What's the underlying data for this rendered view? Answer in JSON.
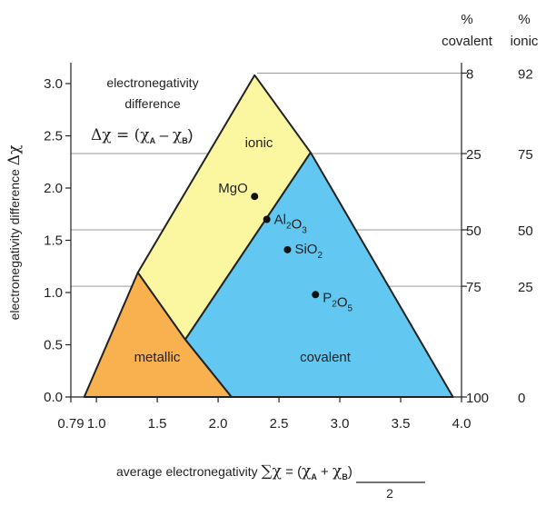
{
  "diagram": {
    "type": "van-arkel-ketelaar-triangle",
    "x_axis": {
      "label": "average electronegativity",
      "formula_sum": "∑χ",
      "formula_eq": " = (",
      "formula_chi_a": "χ",
      "sub_a": "A",
      "formula_plus": " + ",
      "formula_chi_b": "χ",
      "sub_b": "B",
      "formula_close": ")",
      "formula_den": "2",
      "range": [
        0.79,
        4.0
      ],
      "ticks": [
        "0.79",
        "1.0",
        "1.5",
        "2.0",
        "2.5",
        "3.0",
        "3.5",
        "4.0"
      ]
    },
    "y_axis": {
      "label": "electronegativity difference",
      "symbol": "Δχ",
      "range": [
        0.0,
        3.2
      ],
      "ticks": [
        "0.0",
        "0.5",
        "1.0",
        "1.5",
        "2.0",
        "2.5",
        "3.0"
      ]
    },
    "formula_box": {
      "line1": "electronegativity",
      "line2": "difference",
      "lhs": "Δχ = (",
      "chi_a": "χ",
      "sub_a": "A",
      "minus": " – ",
      "chi_b": "χ",
      "sub_b": "B",
      "close": ")"
    },
    "regions": [
      {
        "name": "ionic",
        "label": "ionic",
        "color": "#fbf7a0"
      },
      {
        "name": "metallic",
        "label": "metallic",
        "color": "#f8b14e"
      },
      {
        "name": "covalent",
        "label": "covalent",
        "color": "#62c8f2"
      }
    ],
    "compounds": [
      {
        "label": "MgO",
        "parts": [
          [
            "MgO",
            false
          ]
        ],
        "x": 2.3,
        "y": 1.92
      },
      {
        "label": "Al2O3",
        "parts": [
          [
            "Al",
            false
          ],
          [
            "2",
            true
          ],
          [
            "O",
            false
          ],
          [
            "3",
            true
          ]
        ],
        "x": 2.4,
        "y": 1.7
      },
      {
        "label": "SiO2",
        "parts": [
          [
            "SiO",
            false
          ],
          [
            "2",
            true
          ]
        ],
        "x": 2.57,
        "y": 1.41
      },
      {
        "label": "P2O5",
        "parts": [
          [
            "P",
            false
          ],
          [
            "2",
            true
          ],
          [
            "O",
            false
          ],
          [
            "5",
            true
          ]
        ],
        "x": 2.8,
        "y": 0.98
      }
    ],
    "right_scale": {
      "header_covalent_top": "%",
      "header_covalent": "covalent",
      "header_ionic_top": "%",
      "header_ionic": "ionic",
      "rows": [
        {
          "covalent": "8",
          "ionic": "92",
          "dchi": 3.1
        },
        {
          "covalent": "25",
          "ionic": "75",
          "dchi": 2.33
        },
        {
          "covalent": "50",
          "ionic": "50",
          "dchi": 1.6
        },
        {
          "covalent": "75",
          "ionic": "25",
          "dchi": 1.06
        },
        {
          "covalent": "100",
          "ionic": "0",
          "dchi": 0.0
        }
      ]
    },
    "colors": {
      "ionic": "#fbf7a0",
      "metallic": "#f8b14e",
      "covalent": "#62c8f2",
      "outline": "#222222",
      "guide": "#9a9a9a"
    }
  }
}
